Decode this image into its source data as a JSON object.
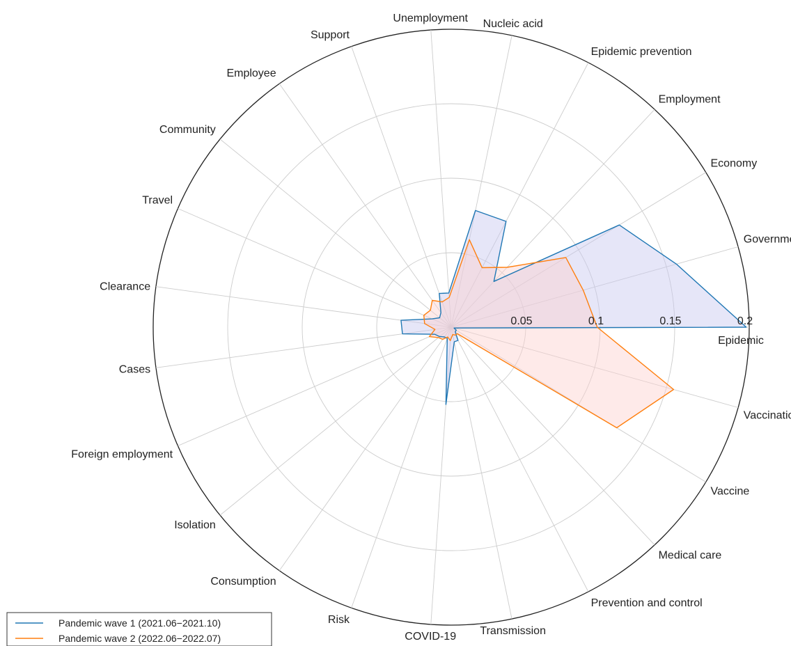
{
  "chart_data": {
    "type": "radar",
    "title": "",
    "categories": [
      "Epidemic",
      "Government",
      "Economy",
      "Employment",
      "Epidemic prevention",
      "Nucleic acid",
      "Unemployment",
      "Support",
      "Employee",
      "Community",
      "Travel",
      "Clearance",
      "Cases",
      "Foreign employment",
      "Isolation",
      "Consumption",
      "Risk",
      "COVID-19",
      "Transmission",
      "Prevention and control",
      "Medical care",
      "Vaccine",
      "Vaccination"
    ],
    "series": [
      {
        "name": "Pandemic wave 1 (2021.06−2021.10)",
        "color": "#1f77b4",
        "fill": "#c8c8f0",
        "values": [
          0.198,
          0.157,
          0.132,
          0.042,
          0.08,
          0.08,
          0.023,
          0.024,
          0.012,
          0.01,
          0.014,
          0.034,
          0.033,
          0.012,
          0.01,
          0.008,
          0.008,
          0.052,
          0.01,
          0.01,
          0.004,
          0.004,
          0.002
        ]
      },
      {
        "name": "Pandemic wave 2 (2022.06−2022.07)",
        "color": "#ff7f0e",
        "fill": "#fcd0cf",
        "values": [
          0.098,
          0.092,
          0.09,
          0.055,
          0.045,
          0.06,
          0.02,
          0.018,
          0.022,
          0.018,
          0.02,
          0.018,
          0.011,
          0.016,
          0.011,
          0.01,
          0.007,
          0.009,
          0.005,
          0.006,
          0.006,
          0.13,
          0.155
        ]
      }
    ],
    "rlim": [
      0,
      0.2
    ],
    "rticks": [
      "0.05",
      "0.1",
      "0.15",
      "0.2"
    ],
    "rtick_values": [
      0.05,
      0.1,
      0.15,
      0.2
    ],
    "grid": true,
    "legend_position": "bottom-left"
  }
}
